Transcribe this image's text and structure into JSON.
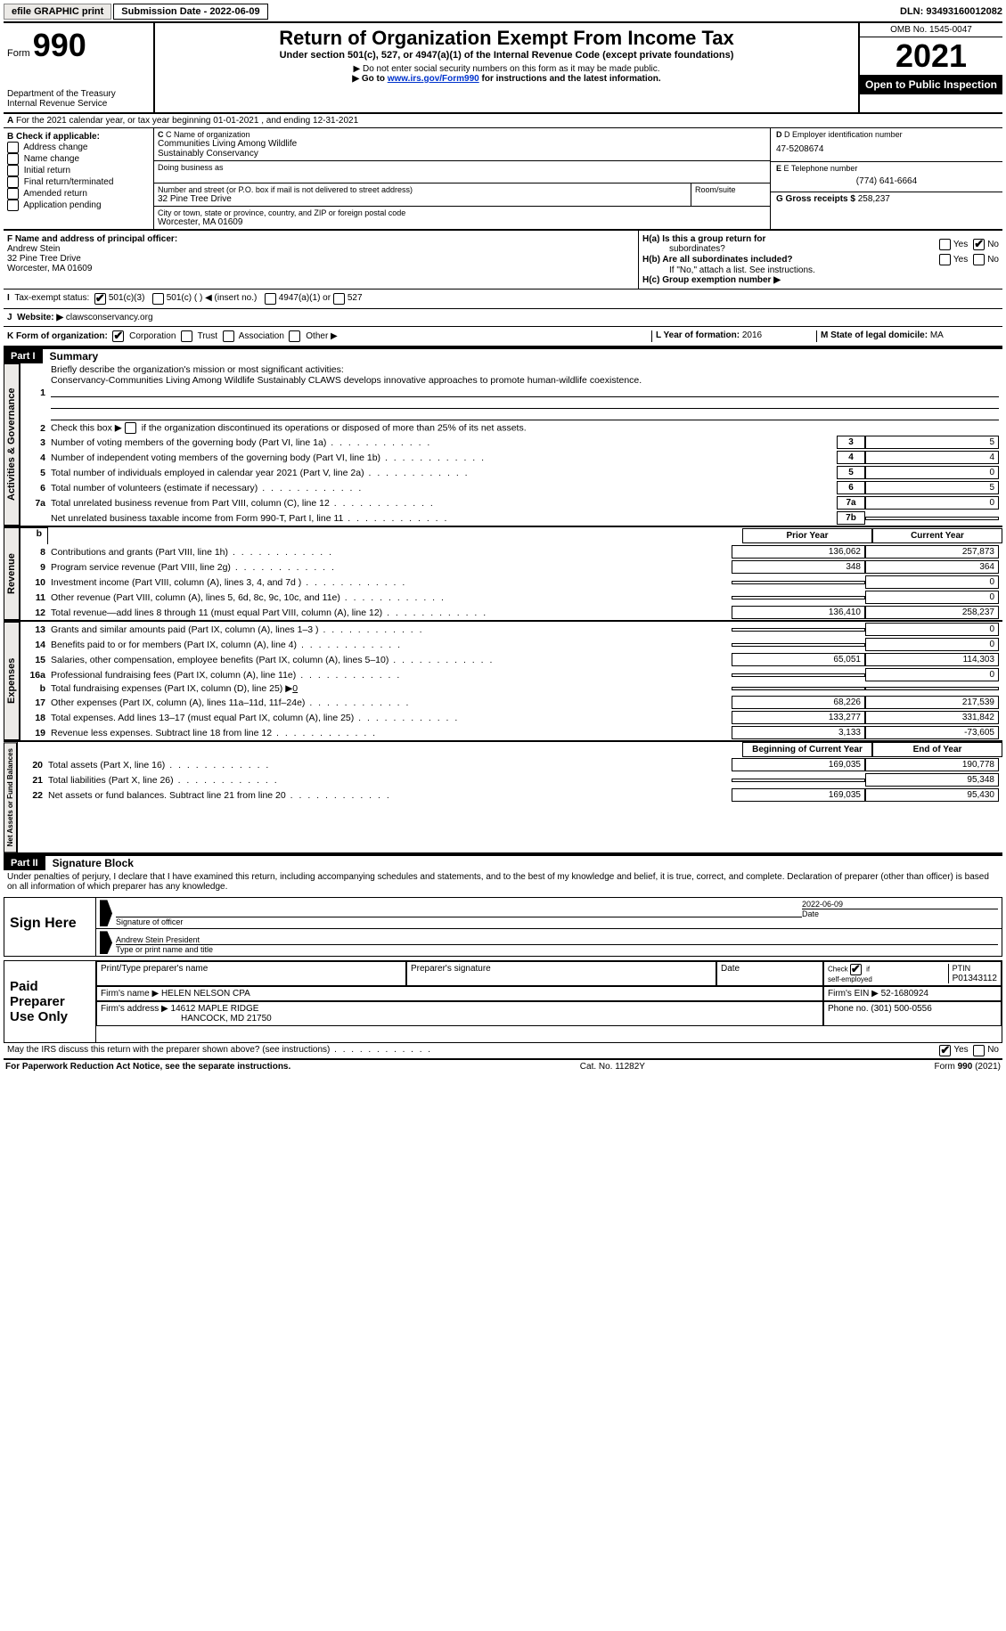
{
  "topbar": {
    "efile": "efile GRAPHIC print",
    "submission": "Submission Date - 2022-06-09",
    "dln": "DLN: 93493160012082"
  },
  "header": {
    "form_word": "Form",
    "form_num": "990",
    "title": "Return of Organization Exempt From Income Tax",
    "subtitle": "Under section 501(c), 527, or 4947(a)(1) of the Internal Revenue Code (except private foundations)",
    "note1": "▶ Do not enter social security numbers on this form as it may be made public.",
    "note2_pre": "▶ Go to ",
    "note2_link": "www.irs.gov/Form990",
    "note2_post": " for instructions and the latest information.",
    "dept": "Department of the Treasury",
    "irs": "Internal Revenue Service",
    "omb": "OMB No. 1545-0047",
    "year": "2021",
    "inspect": "Open to Public Inspection"
  },
  "rowA": "For the 2021 calendar year, or tax year beginning 01-01-2021   , and ending 12-31-2021",
  "boxB": {
    "title": "B Check if applicable:",
    "opts": [
      "Address change",
      "Name change",
      "Initial return",
      "Final return/terminated",
      "Amended return",
      "Application pending"
    ]
  },
  "boxC": {
    "label_name": "C Name of organization",
    "org1": "Communities Living Among Wildlife",
    "org2": "Sustainably Conservancy",
    "dba_label": "Doing business as",
    "addr_label": "Number and street (or P.O. box if mail is not delivered to street address)",
    "room_label": "Room/suite",
    "addr": "32 Pine Tree Drive",
    "city_label": "City or town, state or province, country, and ZIP or foreign postal code",
    "city": "Worcester, MA  01609"
  },
  "boxDE": {
    "d_label": "D Employer identification number",
    "ein": "47-5208674",
    "e_label": "E Telephone number",
    "phone": "(774) 641-6664",
    "g_label": "G Gross receipts $",
    "g_val": "258,237"
  },
  "boxF": {
    "label": "F  Name and address of principal officer:",
    "name": "Andrew Stein",
    "addr1": "32 Pine Tree Drive",
    "addr2": "Worcester, MA  01609"
  },
  "boxH": {
    "ha1": "H(a)  Is this a group return for",
    "ha2": "subordinates?",
    "hb1": "H(b)  Are all subordinates included?",
    "hb2": "If \"No,\" attach a list. See instructions.",
    "hc": "H(c)  Group exemption number ▶",
    "yes": "Yes",
    "no": "No"
  },
  "boxI": {
    "label": "Tax-exempt status:",
    "o1": "501(c)(3)",
    "o2": "501(c) (   ) ◀ (insert no.)",
    "o3": "4947(a)(1) or",
    "o4": "527"
  },
  "boxJ": {
    "label": "Website: ▶",
    "val": "clawsconservancy.org"
  },
  "boxK": {
    "label": "K Form of organization:",
    "o1": "Corporation",
    "o2": "Trust",
    "o3": "Association",
    "o4": "Other ▶"
  },
  "boxL": {
    "label": "L Year of formation:",
    "val": "2016"
  },
  "boxM": {
    "label": "M State of legal domicile:",
    "val": "MA"
  },
  "part1": {
    "tab": "Part I",
    "title": "Summary",
    "vtab": "Activities & Governance",
    "l1_label": "Briefly describe the organization's mission or most significant activities:",
    "l1_text": "Conservancy-Communities Living Among Wildlife Sustainably CLAWS develops innovative approaches to promote human-wildlife coexistence.",
    "l2": "Check this box ▶      if the organization discontinued its operations or disposed of more than 25% of its net assets.",
    "rows_gov": [
      {
        "n": "3",
        "d": "Number of voting members of the governing body (Part VI, line 1a)",
        "box": "3",
        "v": "5"
      },
      {
        "n": "4",
        "d": "Number of independent voting members of the governing body (Part VI, line 1b)",
        "box": "4",
        "v": "4"
      },
      {
        "n": "5",
        "d": "Total number of individuals employed in calendar year 2021 (Part V, line 2a)",
        "box": "5",
        "v": "0"
      },
      {
        "n": "6",
        "d": "Total number of volunteers (estimate if necessary)",
        "box": "6",
        "v": "5"
      },
      {
        "n": "7a",
        "d": "Total unrelated business revenue from Part VIII, column (C), line 12",
        "box": "7a",
        "v": "0"
      },
      {
        "n": "",
        "d": "Net unrelated business taxable income from Form 990-T, Part I, line 11",
        "box": "7b",
        "v": ""
      }
    ],
    "colh_prior": "Prior Year",
    "colh_curr": "Current Year",
    "vtab_rev": "Revenue",
    "rows_rev": [
      {
        "n": "8",
        "d": "Contributions and grants (Part VIII, line 1h)",
        "p": "136,062",
        "c": "257,873"
      },
      {
        "n": "9",
        "d": "Program service revenue (Part VIII, line 2g)",
        "p": "348",
        "c": "364"
      },
      {
        "n": "10",
        "d": "Investment income (Part VIII, column (A), lines 3, 4, and 7d )",
        "p": "",
        "c": "0"
      },
      {
        "n": "11",
        "d": "Other revenue (Part VIII, column (A), lines 5, 6d, 8c, 9c, 10c, and 11e)",
        "p": "",
        "c": "0"
      },
      {
        "n": "12",
        "d": "Total revenue—add lines 8 through 11 (must equal Part VIII, column (A), line 12)",
        "p": "136,410",
        "c": "258,237"
      }
    ],
    "vtab_exp": "Expenses",
    "rows_exp": [
      {
        "n": "13",
        "d": "Grants and similar amounts paid (Part IX, column (A), lines 1–3 )",
        "p": "",
        "c": "0"
      },
      {
        "n": "14",
        "d": "Benefits paid to or for members (Part IX, column (A), line 4)",
        "p": "",
        "c": "0"
      },
      {
        "n": "15",
        "d": "Salaries, other compensation, employee benefits (Part IX, column (A), lines 5–10)",
        "p": "65,051",
        "c": "114,303"
      },
      {
        "n": "16a",
        "d": "Professional fundraising fees (Part IX, column (A), line 11e)",
        "p": "",
        "c": "0"
      },
      {
        "n": "b",
        "d": "Total fundraising expenses (Part IX, column (D), line 25) ▶",
        "p": "grey",
        "c": "grey",
        "inline": "0"
      },
      {
        "n": "17",
        "d": "Other expenses (Part IX, column (A), lines 11a–11d, 11f–24e)",
        "p": "68,226",
        "c": "217,539"
      },
      {
        "n": "18",
        "d": "Total expenses. Add lines 13–17 (must equal Part IX, column (A), line 25)",
        "p": "133,277",
        "c": "331,842"
      },
      {
        "n": "19",
        "d": "Revenue less expenses. Subtract line 18 from line 12",
        "p": "3,133",
        "c": "-73,605"
      }
    ],
    "colh_begin": "Beginning of Current Year",
    "colh_end": "End of Year",
    "vtab_net": "Net Assets or Fund Balances",
    "rows_net": [
      {
        "n": "20",
        "d": "Total assets (Part X, line 16)",
        "p": "169,035",
        "c": "190,778"
      },
      {
        "n": "21",
        "d": "Total liabilities (Part X, line 26)",
        "p": "",
        "c": "95,348"
      },
      {
        "n": "22",
        "d": "Net assets or fund balances. Subtract line 21 from line 20",
        "p": "169,035",
        "c": "95,430"
      }
    ]
  },
  "part2": {
    "tab": "Part II",
    "title": "Signature Block",
    "declaration": "Under penalties of perjury, I declare that I have examined this return, including accompanying schedules and statements, and to the best of my knowledge and belief, it is true, correct, and complete. Declaration of preparer (other than officer) is based on all information of which preparer has any knowledge.",
    "sign_here": "Sign Here",
    "sig_officer": "Signature of officer",
    "sig_date": "2022-06-09",
    "date_lbl": "Date",
    "typed_name": "Andrew Stein President",
    "typed_lbl": "Type or print name and title",
    "paid": "Paid Preparer Use Only",
    "prep_name_lbl": "Print/Type preparer's name",
    "prep_sig_lbl": "Preparer's signature",
    "prep_date_lbl": "Date",
    "check_self": "Check         if self-employed",
    "ptin_lbl": "PTIN",
    "ptin": "P01343112",
    "firm_name_lbl": "Firm's name     ▶",
    "firm_name": "HELEN NELSON CPA",
    "firm_ein_lbl": "Firm's EIN ▶",
    "firm_ein": "52-1680924",
    "firm_addr_lbl": "Firm's address ▶",
    "firm_addr1": "14612 MAPLE RIDGE",
    "firm_addr2": "HANCOCK, MD 21750",
    "phone_lbl": "Phone no.",
    "phone": "(301) 500-0556",
    "discuss": "May the IRS discuss this return with the preparer shown above? (see instructions)",
    "yes": "Yes",
    "no": "No"
  },
  "footer": {
    "left": "For Paperwork Reduction Act Notice, see the separate instructions.",
    "mid": "Cat. No. 11282Y",
    "right": "Form 990 (2021)"
  }
}
